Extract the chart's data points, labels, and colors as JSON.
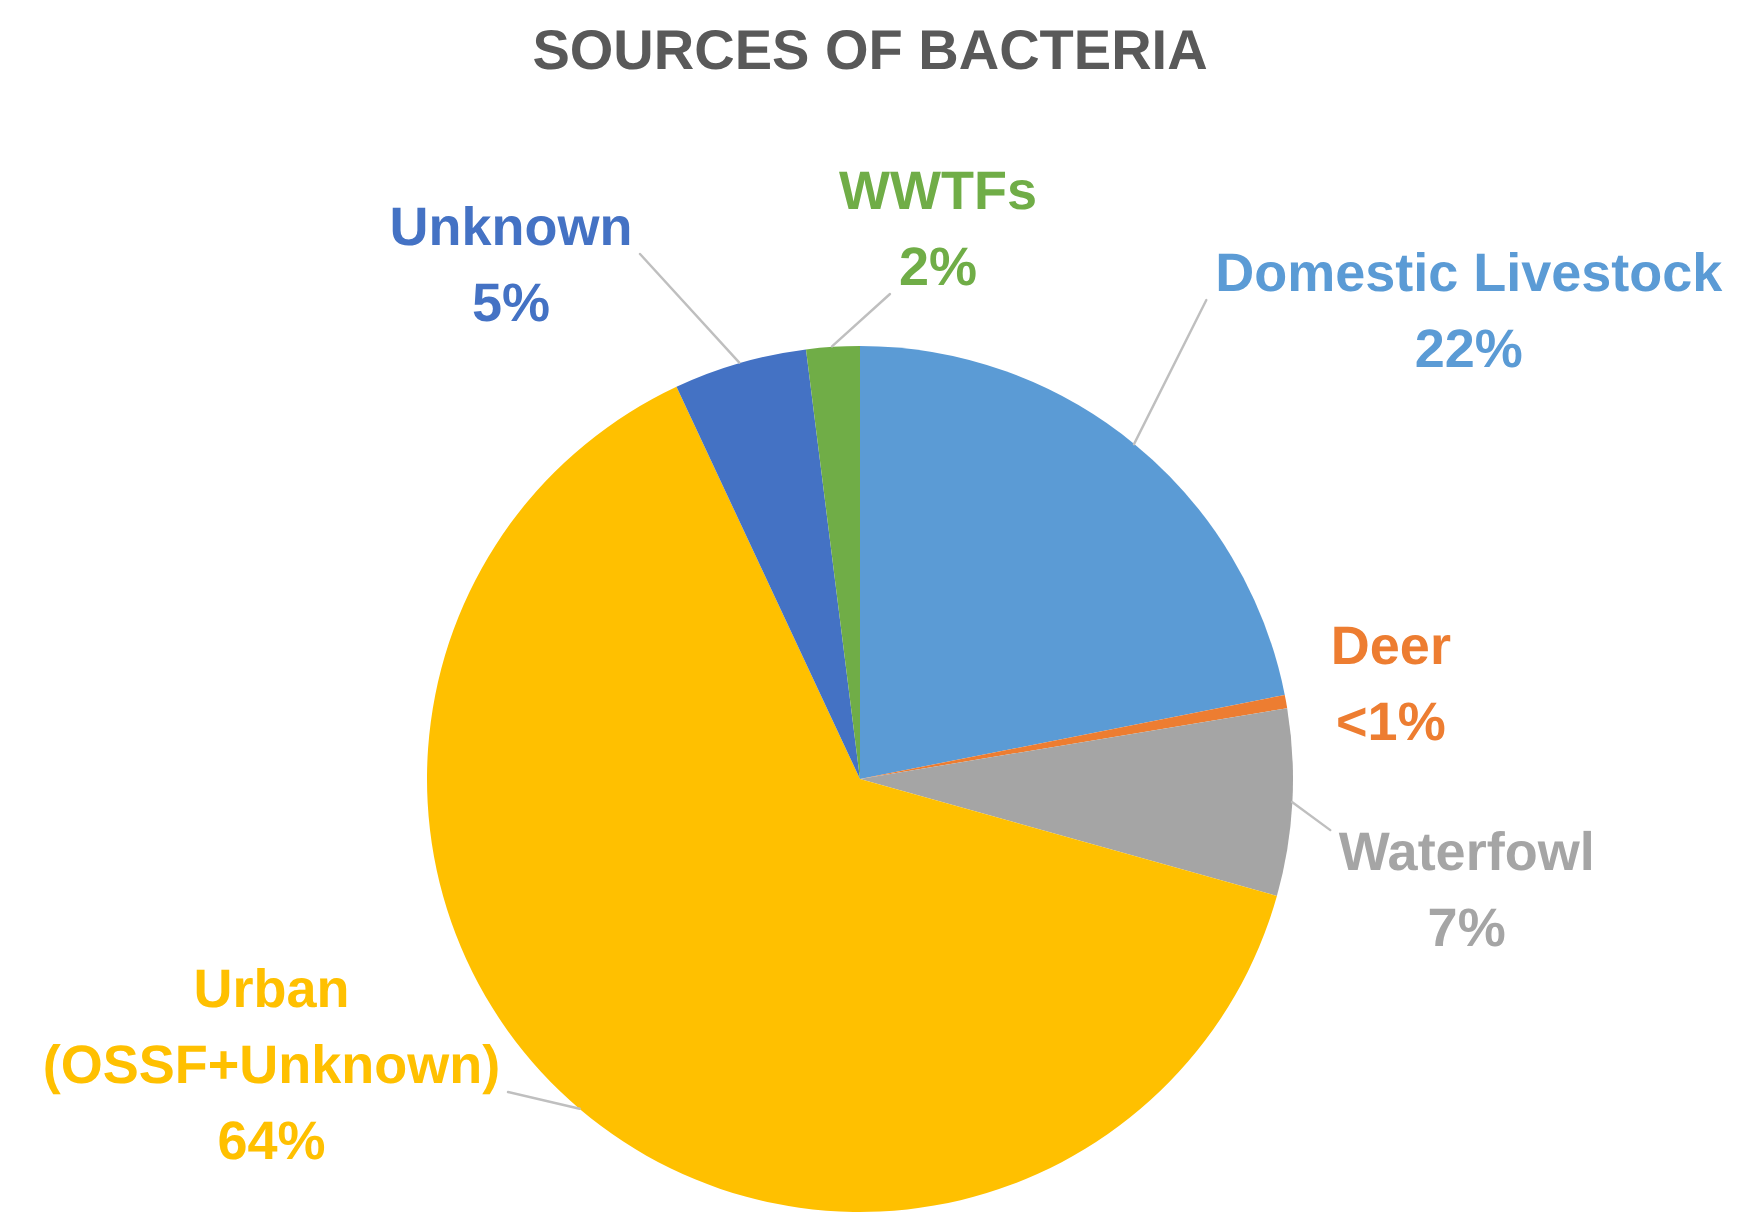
{
  "chart_data": {
    "type": "pie",
    "title": "SOURCES OF BACTERIA",
    "categories": [
      "Domestic Livestock",
      "Deer",
      "Waterfowl",
      "Urban (OSSF+Unknown)",
      "Unknown",
      "WWTFs"
    ],
    "values": [
      22,
      0.5,
      7,
      64,
      5,
      2
    ],
    "colors": [
      "#5b9bd5",
      "#ed7d31",
      "#a5a5a5",
      "#ffc000",
      "#4472c4",
      "#70ad47"
    ],
    "value_labels": [
      "22%",
      "<1%",
      "7%",
      "64%",
      "5%",
      "2%"
    ]
  }
}
